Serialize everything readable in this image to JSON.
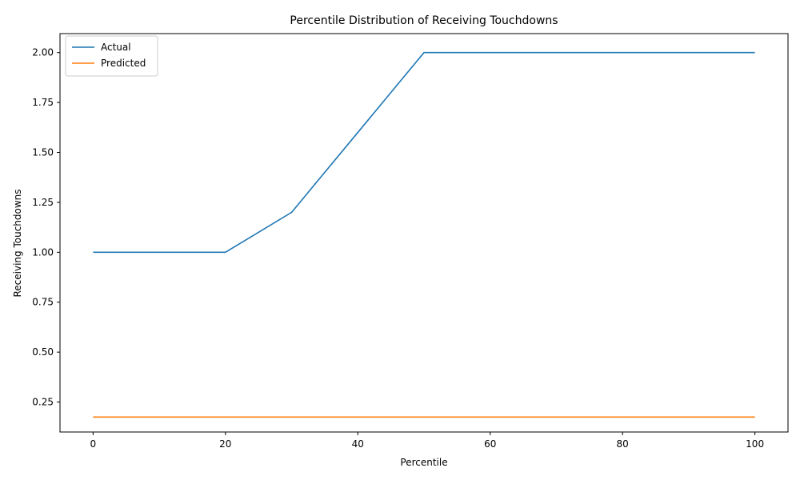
{
  "chart_data": {
    "type": "line",
    "title": "Percentile Distribution of Receiving Touchdowns",
    "xlabel": "Percentile",
    "ylabel": "Receiving Touchdowns",
    "xlim": [
      -5,
      105
    ],
    "ylim": [
      0.1,
      2.095
    ],
    "xticks": [
      0,
      20,
      40,
      60,
      80,
      100
    ],
    "xtick_labels": [
      "0",
      "20",
      "40",
      "60",
      "80",
      "100"
    ],
    "yticks": [
      0.25,
      0.5,
      0.75,
      1.0,
      1.25,
      1.5,
      1.75,
      2.0
    ],
    "ytick_labels": [
      "0.25",
      "0.50",
      "0.75",
      "1.00",
      "1.25",
      "1.50",
      "1.75",
      "2.00"
    ],
    "grid": false,
    "legend_position": "top-left",
    "x": [
      0,
      10,
      20,
      30,
      40,
      50,
      60,
      70,
      80,
      90,
      100
    ],
    "series": [
      {
        "name": "Actual",
        "color": "#1f77b4",
        "values": [
          1.0,
          1.0,
          1.0,
          1.2,
          1.6,
          2.0,
          2.0,
          2.0,
          2.0,
          2.0,
          2.0
        ]
      },
      {
        "name": "Predicted",
        "color": "#ff7f0e",
        "values": [
          0.175,
          0.175,
          0.175,
          0.175,
          0.175,
          0.175,
          0.175,
          0.175,
          0.175,
          0.175,
          0.175
        ]
      }
    ]
  }
}
